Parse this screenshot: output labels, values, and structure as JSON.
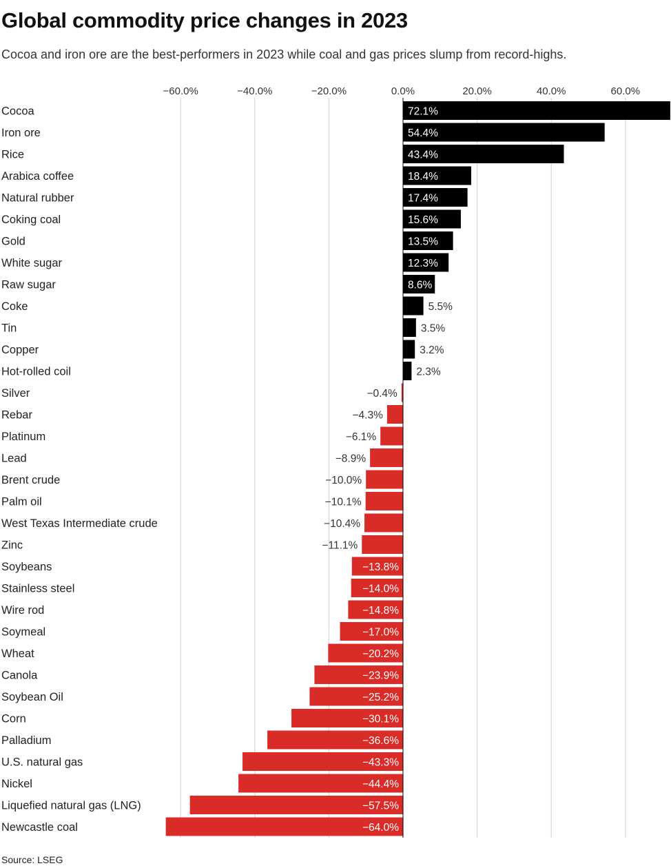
{
  "title": "Global commodity price changes in 2023",
  "subtitle": "Cocoa and iron ore are the best-performers in 2023 while coal and gas prices slump from record-highs.",
  "source": "Source: LSEG",
  "colors": {
    "positive": "#000000",
    "negative": "#d92b27",
    "grid": "#cfcfcf"
  },
  "chart_data": {
    "type": "bar",
    "orientation": "horizontal",
    "title": "Global commodity price changes in 2023",
    "xlabel": "",
    "ylabel": "",
    "xlim": [
      -64,
      72.1
    ],
    "ticks": [
      -60,
      -40,
      -20,
      0,
      20,
      40,
      60
    ],
    "tick_labels": [
      "−60.0%",
      "−40.0%",
      "−20.0%",
      "0.0%",
      "20.0%",
      "40.0%",
      "60.0%"
    ],
    "grid": true,
    "categories": [
      "Cocoa",
      "Iron ore",
      "Rice",
      "Arabica coffee",
      "Natural rubber",
      "Coking coal",
      "Gold",
      "White sugar",
      "Raw sugar",
      "Coke",
      "Tin",
      "Copper",
      "Hot-rolled coil",
      "Silver",
      "Rebar",
      "Platinum",
      "Lead",
      "Brent crude",
      "Palm oil",
      "West Texas Intermediate crude",
      "Zinc",
      "Soybeans",
      "Stainless steel",
      "Wire rod",
      "Soymeal",
      "Wheat",
      "Canola",
      "Soybean Oil",
      "Corn",
      "Palladium",
      "U.S. natural gas",
      "Nickel",
      "Liquefied natural gas (LNG)",
      "Newcastle coal"
    ],
    "values": [
      72.1,
      54.4,
      43.4,
      18.4,
      17.4,
      15.6,
      13.5,
      12.3,
      8.6,
      5.5,
      3.5,
      3.2,
      2.3,
      -0.4,
      -4.3,
      -6.1,
      -8.9,
      -10.0,
      -10.1,
      -10.4,
      -11.1,
      -13.8,
      -14.0,
      -14.8,
      -17.0,
      -20.2,
      -23.9,
      -25.2,
      -30.1,
      -36.6,
      -43.3,
      -44.4,
      -57.5,
      -64.0
    ],
    "value_labels": [
      "72.1%",
      "54.4%",
      "43.4%",
      "18.4%",
      "17.4%",
      "15.6%",
      "13.5%",
      "12.3%",
      "8.6%",
      "5.5%",
      "3.5%",
      "3.2%",
      "2.3%",
      "−0.4%",
      "−4.3%",
      "−6.1%",
      "−8.9%",
      "−10.0%",
      "−10.1%",
      "−10.4%",
      "−11.1%",
      "−13.8%",
      "−14.0%",
      "−14.8%",
      "−17.0%",
      "−20.2%",
      "−23.9%",
      "−25.2%",
      "−30.1%",
      "−36.6%",
      "−43.3%",
      "−44.4%",
      "−57.5%",
      "−64.0%"
    ]
  }
}
